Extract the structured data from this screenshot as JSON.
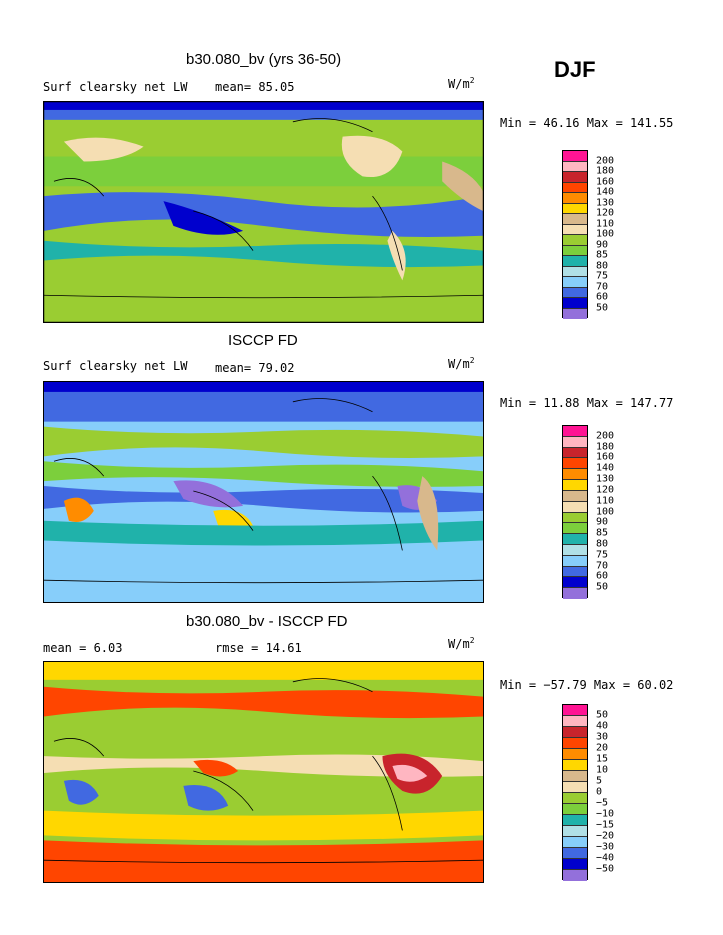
{
  "season": "DJF",
  "units_label": "W/m",
  "units_sup": "2",
  "panels": [
    {
      "title": "b30.080_bv (yrs 36-50)",
      "left_label": "Surf clearsky net LW",
      "stat_label": "mean=  85.05",
      "range": "Min =  46.16 Max = 141.55",
      "levels": [
        "200",
        "180",
        "160",
        "140",
        "130",
        "120",
        "110",
        "100",
        "90",
        "85",
        "80",
        "75",
        "70",
        "60",
        "50"
      ]
    },
    {
      "title": "ISCCP FD",
      "left_label": "Surf clearsky net LW",
      "stat_label": "mean=  79.02",
      "range": "Min =  11.88 Max = 147.77",
      "levels": [
        "200",
        "180",
        "160",
        "140",
        "130",
        "120",
        "110",
        "100",
        "90",
        "85",
        "80",
        "75",
        "70",
        "60",
        "50"
      ]
    },
    {
      "title": "b30.080_bv - ISCCP FD",
      "left_label": "mean =    6.03",
      "stat_label": "rmse =  14.61",
      "range": "Min = −57.79 Max =  60.02",
      "levels": [
        "50",
        "40",
        "30",
        "20",
        "15",
        "10",
        "5",
        "0",
        "−5",
        "−10",
        "−15",
        "−20",
        "−30",
        "−40",
        "−50"
      ]
    }
  ],
  "colors": [
    "#ff1493",
    "#ffb6c1",
    "#c8242c",
    "#ff4500",
    "#ff8c00",
    "#ffd700",
    "#d8b88c",
    "#f5deb3",
    "#9acd32",
    "#7ccf3c",
    "#20b2aa",
    "#b0e0e6",
    "#87cefa",
    "#4169e1",
    "#0000cd",
    "#9370db"
  ],
  "chart_data": {
    "type": "heatmap",
    "season": "DJF",
    "units": "W/m2",
    "maps": [
      {
        "title": "b30.080_bv (yrs 36-50)",
        "field": "Surf clearsky net LW",
        "mean": 85.05,
        "min": 46.16,
        "max": 141.55,
        "contour_levels": [
          50,
          60,
          70,
          75,
          80,
          85,
          90,
          100,
          110,
          120,
          130,
          140,
          160,
          180,
          200
        ]
      },
      {
        "title": "ISCCP FD",
        "field": "Surf clearsky net LW",
        "mean": 79.02,
        "min": 11.88,
        "max": 147.77,
        "contour_levels": [
          50,
          60,
          70,
          75,
          80,
          85,
          90,
          100,
          110,
          120,
          130,
          140,
          160,
          180,
          200
        ]
      },
      {
        "title": "b30.080_bv - ISCCP FD",
        "mean": 6.03,
        "rmse": 14.61,
        "min": -57.79,
        "max": 60.02,
        "contour_levels": [
          -50,
          -40,
          -30,
          -20,
          -15,
          -10,
          -5,
          0,
          5,
          10,
          15,
          20,
          30,
          40,
          50
        ]
      }
    ]
  }
}
